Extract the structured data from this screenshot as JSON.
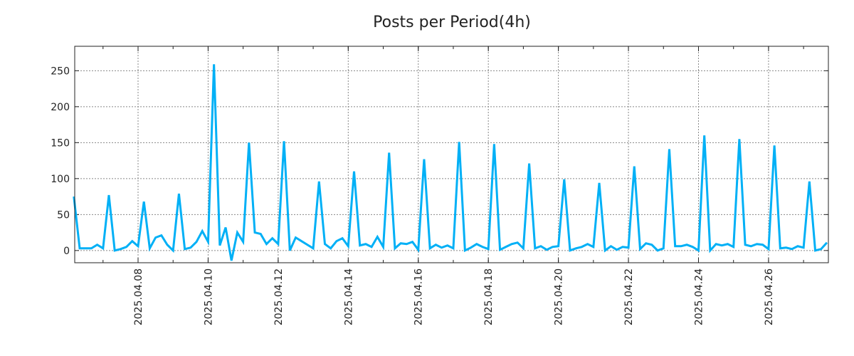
{
  "chart_data": {
    "type": "line",
    "title": "Posts per Period(4h)",
    "xlabel": "",
    "ylabel": "",
    "interval_hours": 4,
    "start": "2025-04-06 04:00",
    "xlim": [
      "2025-04-06 04:36",
      "2025-04-27 17:00"
    ],
    "ylim": [
      -17,
      284
    ],
    "grid": true,
    "y_ticks": [
      0,
      50,
      100,
      150,
      200,
      250
    ],
    "x_tick_labels": [
      "2025.04.08",
      "2025.04.10",
      "2025.04.12",
      "2025.04.14",
      "2025.04.16",
      "2025.04.18",
      "2025.04.20",
      "2025.04.22",
      "2025.04.24",
      "2025.04.26"
    ],
    "series": [
      {
        "name": "posts",
        "color": "#00b0f6",
        "values": [
          75,
          3,
          3,
          3,
          8,
          3,
          77,
          0,
          2,
          5,
          13,
          6,
          68,
          3,
          18,
          21,
          8,
          0,
          79,
          2,
          4,
          12,
          27,
          12,
          259,
          7,
          32,
          -14,
          25,
          12,
          150,
          25,
          23,
          9,
          17,
          9,
          152,
          0,
          18,
          13,
          8,
          3,
          96,
          9,
          3,
          13,
          17,
          6,
          110,
          7,
          9,
          5,
          19,
          5,
          136,
          3,
          10,
          9,
          12,
          1,
          127,
          3,
          8,
          4,
          7,
          3,
          151,
          0,
          4,
          9,
          5,
          2,
          148,
          1,
          5,
          9,
          11,
          3,
          121,
          3,
          6,
          1,
          5,
          6,
          99,
          0,
          3,
          5,
          9,
          5,
          94,
          0,
          6,
          1,
          5,
          4,
          117,
          2,
          10,
          8,
          0,
          3,
          141,
          6,
          6,
          8,
          5,
          0,
          160,
          0,
          9,
          7,
          9,
          5,
          155,
          8,
          6,
          9,
          8,
          2,
          146,
          3,
          4,
          2,
          6,
          4,
          96,
          0,
          2,
          11
        ]
      }
    ]
  }
}
